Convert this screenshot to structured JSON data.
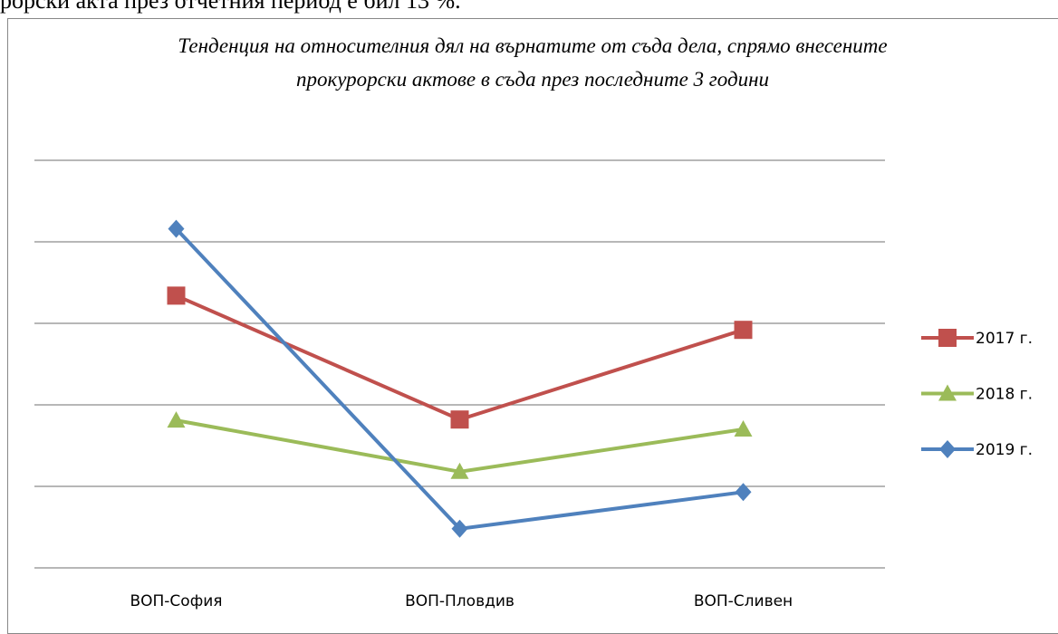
{
  "header_text": "рорски акта през отчетния период е бил 13 %.",
  "chart_data": {
    "type": "line",
    "title": "Тенденция на относителния дял на върнатите от съда дела, спрямо внесените прокурорски актове в съда през последните 3 години",
    "categories": [
      "ВОП-София",
      "ВОП-Пловдив",
      "ВОП-Сливен"
    ],
    "series": [
      {
        "name": "2017 г.",
        "color": "#c0504d",
        "marker": "square",
        "values": [
          3.34,
          1.82,
          2.92
        ]
      },
      {
        "name": "2018 г.",
        "color": "#9bbb59",
        "marker": "triangle",
        "values": [
          1.81,
          1.18,
          1.7
        ]
      },
      {
        "name": "2019 г.",
        "color": "#4f81bd",
        "marker": "diamond",
        "values": [
          4.16,
          0.48,
          0.93
        ]
      }
    ],
    "ylim": [
      0,
      5
    ],
    "yticks": [
      0,
      1,
      2,
      3,
      4,
      5
    ],
    "grid": true,
    "legend": "right"
  }
}
